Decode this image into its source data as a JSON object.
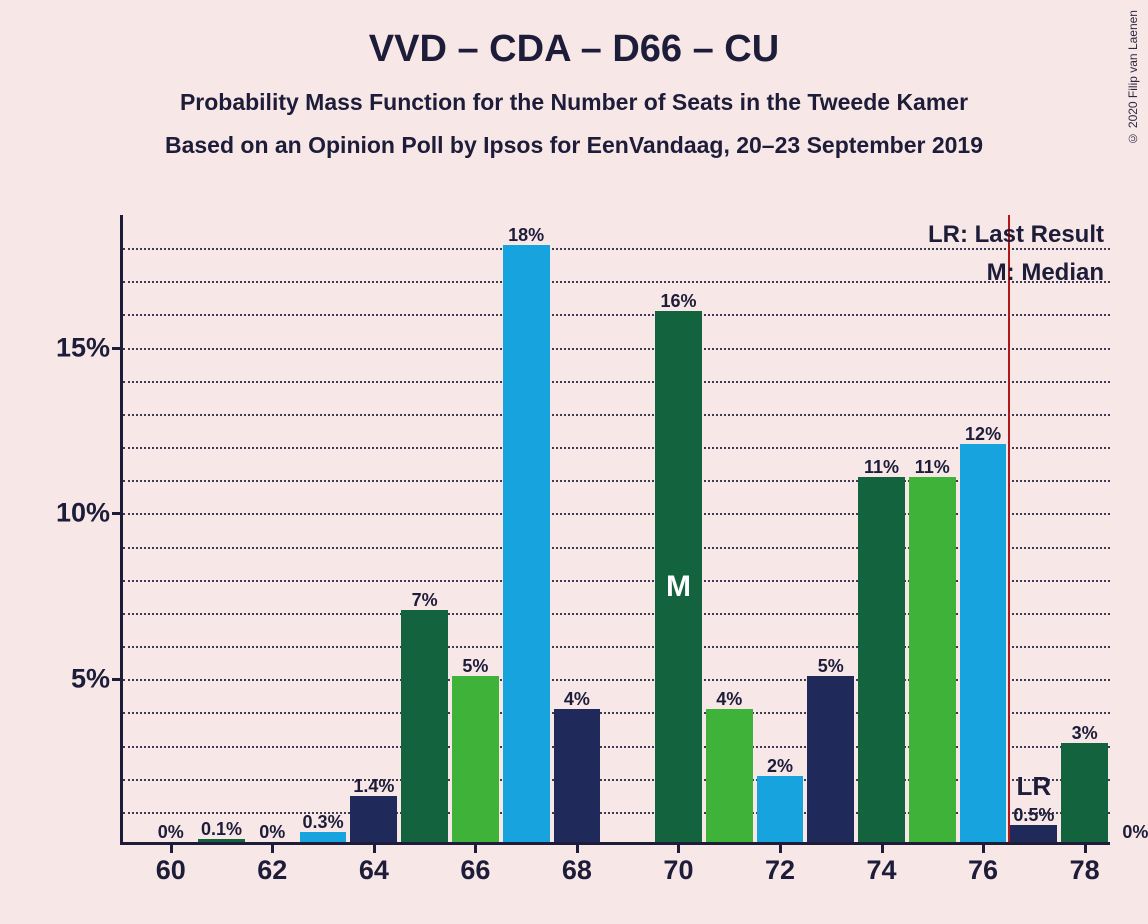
{
  "copyright": "© 2020 Filip van Laenen",
  "title": "VVD – CDA – D66 – CU",
  "subtitle": "Probability Mass Function for the Number of Seats in the Tweede Kamer",
  "subtitle2": "Based on an Opinion Poll by Ipsos for EenVandaag, 20–23 September 2019",
  "chart": {
    "type": "bar",
    "background_color": "#f8e7e7",
    "axis_color": "#1d1d3a",
    "text_color": "#1d1d3a",
    "lr_line_color": "#b01818",
    "grid_style": "dotted",
    "x_min": 59,
    "x_max": 78.5,
    "y_min": 0,
    "y_max": 19,
    "y_ticks": [
      5,
      10,
      15
    ],
    "y_minor_step": 1,
    "x_ticks": [
      60,
      62,
      64,
      66,
      68,
      70,
      72,
      74,
      76,
      78
    ],
    "bar_width_units": 0.92,
    "lr_position": 76,
    "median_position": 70,
    "median_text": "M",
    "lr_text": "LR",
    "legend_lr": "LR: Last Result",
    "legend_m": "M: Median",
    "bars": [
      {
        "x": 60,
        "value": 0,
        "label": "0%",
        "color": "#17a3dd"
      },
      {
        "x": 61,
        "value": 0.1,
        "label": "0.1%",
        "color": "#14633f"
      },
      {
        "x": 62,
        "value": 0,
        "label": "0%",
        "color": "#3fb23a"
      },
      {
        "x": 63,
        "value": 0.3,
        "label": "0.3%",
        "color": "#17a3dd"
      },
      {
        "x": 64,
        "value": 1.4,
        "label": "1.4%",
        "color": "#1f2a5a"
      },
      {
        "x": 65,
        "value": 7,
        "label": "7%",
        "color": "#14633f"
      },
      {
        "x": 66,
        "value": 5,
        "label": "5%",
        "color": "#3fb23a"
      },
      {
        "x": 67,
        "value": 18,
        "label": "18%",
        "color": "#17a3dd"
      },
      {
        "x": 68,
        "value": 4,
        "label": "4%",
        "color": "#1f2a5a"
      },
      {
        "x": 69,
        "value": 0,
        "label": "",
        "color": "#14633f"
      },
      {
        "x": 70,
        "value": 16,
        "label": "16%",
        "color": "#14633f"
      },
      {
        "x": 71,
        "value": 4,
        "label": "4%",
        "color": "#3fb23a"
      },
      {
        "x": 72,
        "value": 2,
        "label": "2%",
        "color": "#17a3dd"
      },
      {
        "x": 73,
        "value": 5,
        "label": "5%",
        "color": "#1f2a5a"
      },
      {
        "x": 74,
        "value": 11,
        "label": "11%",
        "color": "#14633f"
      },
      {
        "x": 75,
        "value": 11,
        "label": "11%",
        "color": "#3fb23a"
      },
      {
        "x": 76,
        "value": 12,
        "label": "12%",
        "color": "#17a3dd"
      },
      {
        "x": 77,
        "value": 0.5,
        "label": "0.5%",
        "color": "#1f2a5a"
      },
      {
        "x": 78,
        "value": 3,
        "label": "3%",
        "color": "#14633f"
      },
      {
        "x": 79,
        "value": 0,
        "label": "0%",
        "color": "#3fb23a"
      }
    ]
  }
}
